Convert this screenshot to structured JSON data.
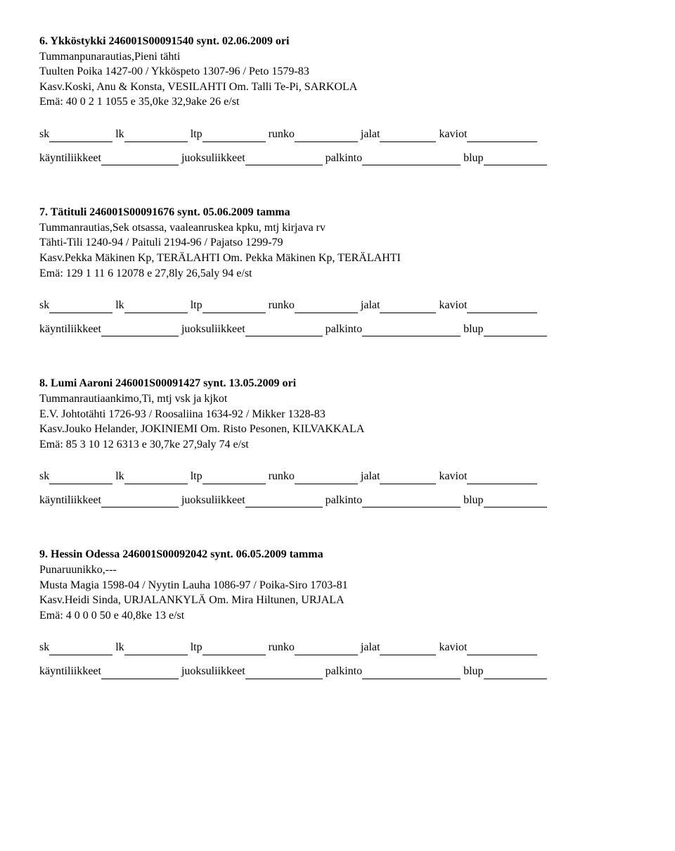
{
  "entries": [
    {
      "title": "6. Ykköstykki 246001S00091540 synt. 02.06.2009 ori",
      "lines": [
        "Tummanpunarautias,Pieni tähti",
        "Tuulten Poika 1427-00 / Ykköspeto 1307-96 / Peto 1579-83",
        "Kasv.Koski, Anu & Konsta, VESILAHTI Om. Talli Te-Pi, SARKOLA",
        "Emä: 40 0 2 1 1055 e 35,0ke 32,9ake 26 e/st"
      ]
    },
    {
      "title": "7. Tätituli 246001S00091676 synt. 05.06.2009 tamma",
      "lines": [
        "Tummanrautias,Sek otsassa, vaaleanruskea kpku, mtj kirjava rv",
        "Tähti-Tili 1240-94 / Paituli 2194-96 / Pajatso 1299-79",
        "Kasv.Pekka Mäkinen Kp, TERÄLAHTI Om. Pekka Mäkinen Kp, TERÄLAHTI",
        "Emä: 129 1 11 6 12078 e 27,8ly 26,5aly 94 e/st"
      ]
    },
    {
      "title": "8. Lumi Aaroni 246001S00091427 synt. 13.05.2009 ori",
      "lines": [
        "Tummanrautiaankimo,Ti, mtj vsk ja kjkot",
        "E.V. Johtotähti 1726-93 / Roosaliina 1634-92 / Mikker 1328-83",
        "Kasv.Jouko Helander, JOKINIEMI Om. Risto Pesonen, KILVAKKALA",
        "Emä: 85 3 10 12 6313 e 30,7ke 27,9aly 74 e/st"
      ]
    },
    {
      "title": "9. Hessin Odessa 246001S00092042 synt. 06.05.2009 tamma",
      "lines": [
        "Punaruunikko,---",
        "Musta Magia 1598-04 / Nyytin Lauha 1086-97 / Poika-Siro 1703-81",
        "Kasv.Heidi Sinda, URJALANKYLÄ Om. Mira Hiltunen, URJALA",
        "Emä: 4 0 0 0 50 e 40,8ke 13 e/st"
      ]
    }
  ],
  "form": {
    "row1": {
      "sk": "sk",
      "lk": "lk",
      "ltp": "ltp",
      "runko": "runko",
      "jalat": "jalat",
      "kaviot": "kaviot"
    },
    "row2": {
      "kayntiliikkeet": "käyntiliikkeet",
      "juoksuliikkeet": "juoksuliikkeet",
      "palkinto": "palkinto",
      "blup": "blup"
    }
  }
}
